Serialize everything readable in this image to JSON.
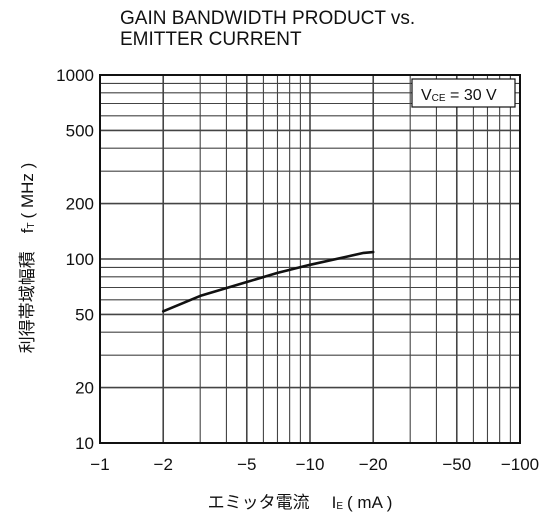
{
  "chart_data": {
    "type": "line",
    "title_lines": [
      "GAIN BANDWIDTH PRODUCT vs.",
      "EMITTER CURRENT"
    ],
    "xlabel": {
      "main": "エミッタ電流",
      "symbol": "I",
      "sub": "E",
      "unit": "( mA )"
    },
    "ylabel": {
      "main": "利得帯域幅積",
      "symbol": "f",
      "sub": "T",
      "unit": "( MHz )"
    },
    "xscale": "log",
    "yscale": "log",
    "xlim": [
      -1,
      -100
    ],
    "ylim": [
      10,
      1000
    ],
    "x_ticks": [
      {
        "v": 1,
        "label": "−1"
      },
      {
        "v": 2,
        "label": "−2"
      },
      {
        "v": 5,
        "label": "−5"
      },
      {
        "v": 10,
        "label": "−10"
      },
      {
        "v": 20,
        "label": "−20"
      },
      {
        "v": 50,
        "label": "−50"
      },
      {
        "v": 100,
        "label": "−100"
      }
    ],
    "y_ticks": [
      {
        "v": 10,
        "label": "10"
      },
      {
        "v": 20,
        "label": "20"
      },
      {
        "v": 50,
        "label": "50"
      },
      {
        "v": 100,
        "label": "100"
      },
      {
        "v": 200,
        "label": "200"
      },
      {
        "v": 500,
        "label": "500"
      },
      {
        "v": 1000,
        "label": "1000"
      }
    ],
    "grid": true,
    "annotation": {
      "prefix": "V",
      "sub": "CE",
      "text": " = 30 V",
      "placement": "top-right"
    },
    "series": [
      {
        "x": [
          -2,
          -3,
          -5,
          -7,
          -10,
          -15,
          -18,
          -20
        ],
        "y": [
          52,
          63,
          75,
          84,
          93,
          103,
          108,
          109
        ]
      }
    ],
    "line_color": "#111111",
    "grid_color": "#444444"
  }
}
